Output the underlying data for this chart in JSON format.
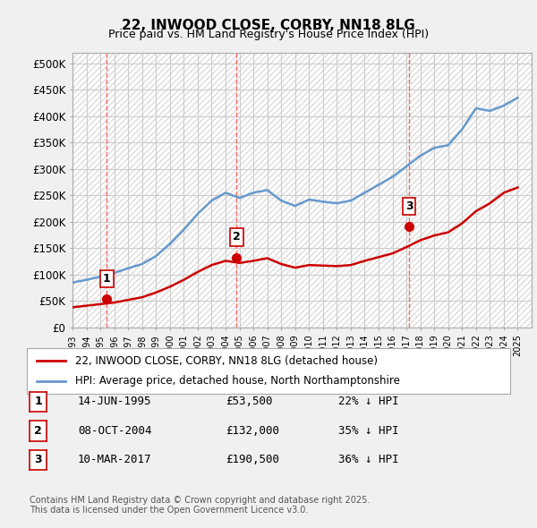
{
  "title": "22, INWOOD CLOSE, CORBY, NN18 8LG",
  "subtitle": "Price paid vs. HM Land Registry's House Price Index (HPI)",
  "ylabel_ticks": [
    "£0",
    "£50K",
    "£100K",
    "£150K",
    "£200K",
    "£250K",
    "£300K",
    "£350K",
    "£400K",
    "£450K",
    "£500K"
  ],
  "ytick_vals": [
    0,
    50000,
    100000,
    150000,
    200000,
    250000,
    300000,
    350000,
    400000,
    450000,
    500000
  ],
  "ylim": [
    0,
    520000
  ],
  "xlim_start": 1993.0,
  "xlim_end": 2026.0,
  "background_color": "#f0f0f0",
  "plot_bg_color": "#ffffff",
  "hatch_color": "#cccccc",
  "red_line_color": "#cc0000",
  "blue_line_color": "#6699cc",
  "grid_color": "#cccccc",
  "sale_marker_color": "#cc0000",
  "sale_label_bg": "#ffffff",
  "sale_label_border": "#cc0000",
  "vline_color": "#ff6666",
  "sales": [
    {
      "label": "1",
      "date": 1995.45,
      "price": 53500,
      "date_str": "14-JUN-1995",
      "price_str": "£53,500",
      "pct_str": "22% ↓ HPI"
    },
    {
      "label": "2",
      "date": 2004.78,
      "price": 132000,
      "date_str": "08-OCT-2004",
      "price_str": "£132,000",
      "pct_str": "35% ↓ HPI"
    },
    {
      "label": "3",
      "date": 2017.19,
      "price": 190500,
      "date_str": "10-MAR-2017",
      "price_str": "£190,500",
      "pct_str": "36% ↓ HPI"
    }
  ],
  "legend_entries": [
    {
      "label": "22, INWOOD CLOSE, CORBY, NN18 8LG (detached house)",
      "color": "#cc0000"
    },
    {
      "label": "HPI: Average price, detached house, North Northamptonshire",
      "color": "#6699cc"
    }
  ],
  "table_rows": [
    {
      "num": "1",
      "date": "14-JUN-1995",
      "price": "£53,500",
      "pct": "22% ↓ HPI"
    },
    {
      "num": "2",
      "date": "08-OCT-2004",
      "price": "£132,000",
      "pct": "35% ↓ HPI"
    },
    {
      "num": "3",
      "date": "10-MAR-2017",
      "price": "£190,500",
      "pct": "36% ↓ HPI"
    }
  ],
  "footer": "Contains HM Land Registry data © Crown copyright and database right 2025.\nThis data is licensed under the Open Government Licence v3.0.",
  "hpi_years": [
    1993,
    1994,
    1995,
    1996,
    1997,
    1998,
    1999,
    2000,
    2001,
    2002,
    2003,
    2004,
    2005,
    2006,
    2007,
    2008,
    2009,
    2010,
    2011,
    2012,
    2013,
    2014,
    2015,
    2016,
    2017,
    2018,
    2019,
    2020,
    2021,
    2022,
    2023,
    2024,
    2025
  ],
  "hpi_values": [
    85000,
    90000,
    96000,
    103000,
    112000,
    120000,
    135000,
    158000,
    185000,
    215000,
    240000,
    255000,
    245000,
    255000,
    260000,
    240000,
    230000,
    242000,
    238000,
    235000,
    240000,
    255000,
    270000,
    285000,
    305000,
    325000,
    340000,
    345000,
    375000,
    415000,
    410000,
    420000,
    435000
  ],
  "red_years": [
    1993,
    1994,
    1995,
    1996,
    1997,
    1998,
    1999,
    2000,
    2001,
    2002,
    2003,
    2004,
    2005,
    2006,
    2007,
    2008,
    2009,
    2010,
    2011,
    2012,
    2013,
    2014,
    2015,
    2016,
    2017,
    2018,
    2019,
    2020,
    2021,
    2022,
    2023,
    2024,
    2025
  ],
  "red_values": [
    38000,
    41000,
    44000,
    47000,
    52000,
    57000,
    66000,
    77000,
    90000,
    105000,
    118000,
    126000,
    122000,
    126000,
    131000,
    120000,
    113000,
    118000,
    117000,
    116000,
    118000,
    126000,
    133000,
    140000,
    152000,
    165000,
    174000,
    180000,
    197000,
    220000,
    235000,
    255000,
    265000
  ]
}
